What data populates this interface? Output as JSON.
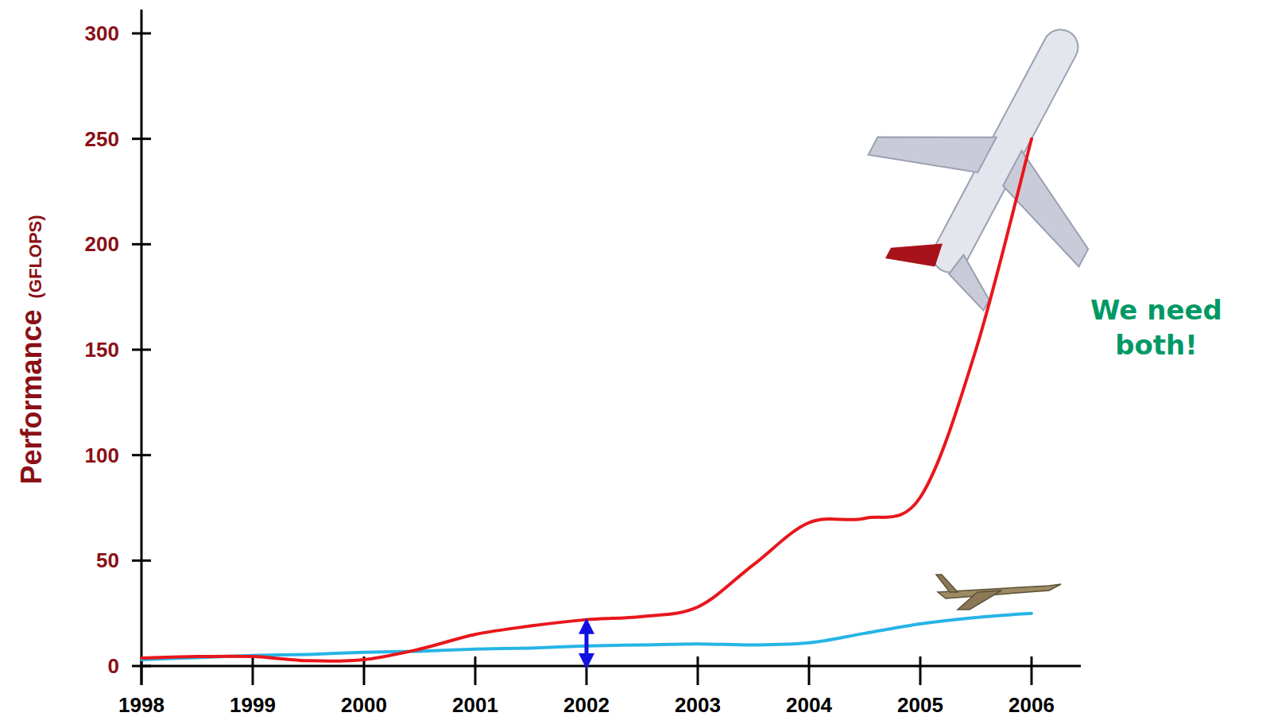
{
  "chart_data": {
    "type": "line",
    "y_label": "Performance (GFLOPS)",
    "annotation": "We need both!",
    "x": [
      1998,
      1998.5,
      1999,
      1999.5,
      2000,
      2000.5,
      2001,
      2001.5,
      2002,
      2002.5,
      2003,
      2003.5,
      2004,
      2004.5,
      2005,
      2005.5,
      2006
    ],
    "series": [
      {
        "color": "#e8161c",
        "values": [
          3.8,
          4.5,
          4.5,
          2.5,
          3,
          8,
          15,
          19,
          22,
          23.5,
          28,
          48,
          68,
          70,
          80,
          150,
          250
        ]
      },
      {
        "color": "#27b4e6",
        "values": [
          3,
          4,
          5,
          5.5,
          6.5,
          7,
          8,
          8.5,
          9.5,
          10,
          10.5,
          10,
          11,
          15.5,
          20,
          23,
          25
        ]
      }
    ],
    "xlim": [
      1998,
      2006
    ],
    "xticks": [
      1998,
      1999,
      2000,
      2001,
      2002,
      2003,
      2004,
      2005,
      2006
    ],
    "ylim": [
      0,
      300
    ],
    "yticks": [
      0,
      50,
      100,
      150,
      200,
      250,
      300
    ],
    "grid": false
  }
}
